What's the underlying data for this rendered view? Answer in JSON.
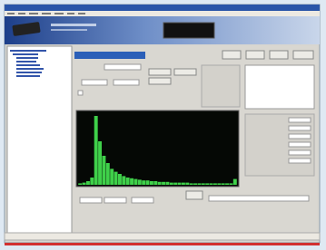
{
  "spectrum": {
    "values": [
      2,
      3,
      5,
      10,
      95,
      60,
      40,
      30,
      22,
      18,
      15,
      12,
      10,
      9,
      8,
      7,
      6,
      6,
      5,
      5,
      4,
      4,
      4,
      3,
      3,
      3,
      3,
      3,
      2,
      2,
      2,
      2,
      2,
      2,
      2,
      2,
      2,
      2,
      2,
      8
    ],
    "ylim": [
      0,
      100
    ]
  }
}
